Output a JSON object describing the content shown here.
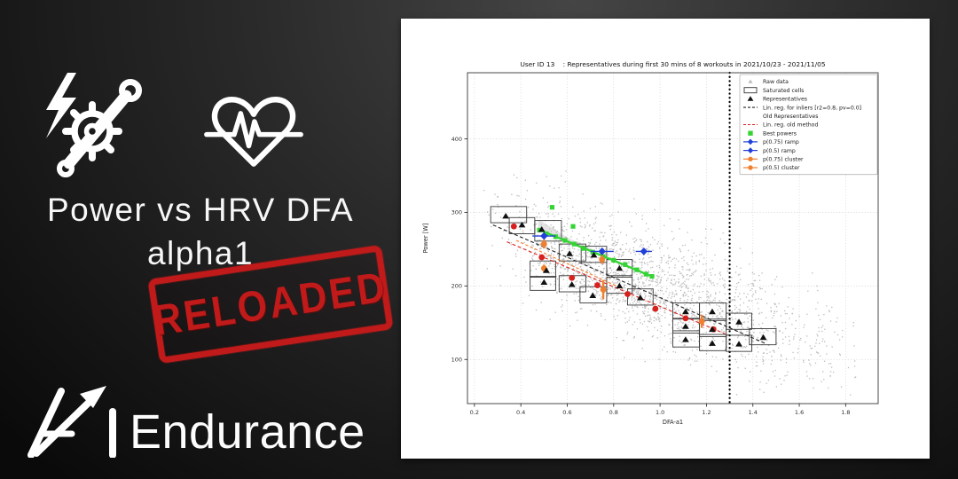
{
  "left_panel": {
    "headline": {
      "line1": "Power vs HRV DFA",
      "line2": "alpha1"
    },
    "stamp": {
      "text": "RELOADED",
      "color": "#c01a1a"
    },
    "brand": {
      "text": "Endurance"
    },
    "icons": [
      "power-crank-icon",
      "heart-pulse-icon",
      "brand-arrow-a-icon"
    ]
  },
  "chart_data": {
    "type": "scatter",
    "title": "User ID 13    : Representatives during first 30 mins of 8 workouts in 2021/10/23 - 2021/11/05",
    "xlabel": "DFA-a1",
    "ylabel": "Power [W]",
    "xlim": [
      0.17,
      1.94
    ],
    "ylim": [
      40,
      490
    ],
    "xticks": [
      0.2,
      0.4,
      0.6,
      0.8,
      1.0,
      1.2,
      1.4,
      1.6,
      1.8
    ],
    "yticks": [
      100,
      200,
      300,
      400
    ],
    "grid": true,
    "legend_position": "upper right",
    "vline": {
      "x": 1.3,
      "style": "dotted",
      "color": "#000000"
    },
    "colors": {
      "raw": "#8f8f8f",
      "cells": "#3a3a3a",
      "representatives": "#111111",
      "reg_inliers": "#222222",
      "reg_old": "#d8201c",
      "old_reps": "#d8201c",
      "best": "#35d435",
      "ramp": "#2040d8",
      "cluster": "#f08030",
      "grid": "#cfcfcf",
      "band": "#c8c8c8"
    },
    "legend": [
      {
        "label": "Raw data",
        "type": "raw"
      },
      {
        "label": "Saturated cells",
        "type": "cell"
      },
      {
        "label": "Representatives",
        "type": "tri"
      },
      {
        "label": "Lin. reg. for inliers [r2=0.8, pv=0.0]",
        "type": "dash-black"
      },
      {
        "label": "Old Representatives",
        "type": "none"
      },
      {
        "label": "Lin. reg. old method",
        "type": "dash-red"
      },
      {
        "label": "Best powers",
        "type": "square-green"
      },
      {
        "label": "p(0.75) ramp",
        "type": "diamond-blue"
      },
      {
        "label": "p(0.5) ramp",
        "type": "diamond-blue"
      },
      {
        "label": "p(0.75) cluster",
        "type": "circle-orange"
      },
      {
        "label": "p(0.5) cluster",
        "type": "circle-orange"
      }
    ],
    "saturated_cells": [
      [
        0.27,
        286,
        0.425,
        308
      ],
      [
        0.35,
        271,
        0.46,
        293
      ],
      [
        0.46,
        261,
        0.575,
        289
      ],
      [
        0.565,
        234,
        0.68,
        257
      ],
      [
        0.66,
        232,
        0.77,
        254
      ],
      [
        0.44,
        212,
        0.55,
        234
      ],
      [
        0.44,
        194,
        0.55,
        213
      ],
      [
        0.565,
        192,
        0.68,
        214
      ],
      [
        0.77,
        214,
        0.88,
        236
      ],
      [
        0.77,
        190,
        0.88,
        212
      ],
      [
        0.655,
        177,
        0.77,
        199
      ],
      [
        0.86,
        174,
        0.97,
        196
      ],
      [
        1.055,
        155,
        1.17,
        177
      ],
      [
        1.17,
        155,
        1.285,
        177
      ],
      [
        1.055,
        136,
        1.17,
        156
      ],
      [
        1.17,
        131,
        1.285,
        153
      ],
      [
        1.285,
        141,
        1.395,
        163
      ],
      [
        1.055,
        117,
        1.17,
        139
      ],
      [
        1.17,
        112,
        1.285,
        134
      ],
      [
        1.285,
        111,
        1.395,
        133
      ],
      [
        1.385,
        120,
        1.5,
        142
      ]
    ],
    "representatives": [
      [
        0.335,
        295
      ],
      [
        0.405,
        283
      ],
      [
        0.49,
        277
      ],
      [
        0.61,
        244
      ],
      [
        0.715,
        242
      ],
      [
        0.51,
        221
      ],
      [
        0.5,
        205
      ],
      [
        0.62,
        202
      ],
      [
        0.825,
        224
      ],
      [
        0.825,
        200
      ],
      [
        0.71,
        187
      ],
      [
        0.915,
        184
      ],
      [
        1.11,
        165
      ],
      [
        1.225,
        165
      ],
      [
        1.11,
        145
      ],
      [
        1.225,
        141
      ],
      [
        1.34,
        151
      ],
      [
        1.11,
        127
      ],
      [
        1.225,
        122
      ],
      [
        1.34,
        121
      ],
      [
        1.445,
        130
      ]
    ],
    "old_representatives": [
      [
        0.37,
        281
      ],
      [
        0.49,
        239
      ],
      [
        0.62,
        211
      ],
      [
        0.73,
        201
      ],
      [
        0.86,
        189
      ],
      [
        0.98,
        169
      ],
      [
        1.11,
        156
      ],
      [
        1.23,
        141
      ]
    ],
    "best_powers": [
      [
        0.535,
        307
      ],
      [
        0.625,
        281
      ],
      [
        0.48,
        276
      ],
      [
        0.51,
        271
      ],
      [
        0.55,
        267
      ],
      [
        0.59,
        262
      ],
      [
        0.63,
        257
      ],
      [
        0.67,
        251
      ],
      [
        0.71,
        246
      ],
      [
        0.755,
        240
      ],
      [
        0.8,
        235
      ],
      [
        0.85,
        229
      ],
      [
        0.9,
        222
      ],
      [
        0.94,
        216
      ],
      [
        0.965,
        213
      ]
    ],
    "ramp_points": [
      {
        "x": 0.5,
        "y": 268,
        "xerr": 0.05
      },
      {
        "x": 0.75,
        "y": 247,
        "xerr": 0.05
      },
      {
        "x": 0.93,
        "y": 247,
        "xerr": 0.035
      }
    ],
    "cluster_points": [
      {
        "x": 0.5,
        "y": 257,
        "yerr": 6
      },
      {
        "x": 0.5,
        "y": 224,
        "yerr": 5
      },
      {
        "x": 0.75,
        "y": 236,
        "yerr": 6
      },
      {
        "x": 0.755,
        "y": 195,
        "yerr": 13
      },
      {
        "x": 1.18,
        "y": 152,
        "yerr": 9
      }
    ],
    "lin_reg_inliers": [
      [
        0.28,
        283
      ],
      [
        1.46,
        121
      ]
    ],
    "lin_reg_old": [
      [
        0.34,
        260
      ],
      [
        1.28,
        135
      ]
    ],
    "cluster_trend": [
      [
        0.38,
        262
      ],
      [
        0.84,
        196
      ]
    ],
    "best_powers_trend": [
      [
        0.475,
        277
      ],
      [
        0.965,
        213
      ]
    ],
    "confidence_band": [
      [
        0.475,
        291
      ],
      [
        0.6,
        266
      ],
      [
        0.72,
        248
      ],
      [
        0.72,
        243
      ],
      [
        0.6,
        261
      ],
      [
        0.475,
        276
      ]
    ],
    "raw_points_spec": {
      "seed": 20211105,
      "n_band": 1500,
      "n_core": 430,
      "band": {
        "x_min": 0.22,
        "x_span": 1.66,
        "intercept": 318,
        "slope": -118,
        "noise": 80
      },
      "core": {
        "x_min": 0.44,
        "x_span": 0.58,
        "intercept": 300,
        "slope": -118,
        "noise": 46
      },
      "clip": {
        "x": [
          0.21,
          1.93
        ],
        "y": [
          48,
          470
        ]
      },
      "point_size": 1.3
    }
  }
}
